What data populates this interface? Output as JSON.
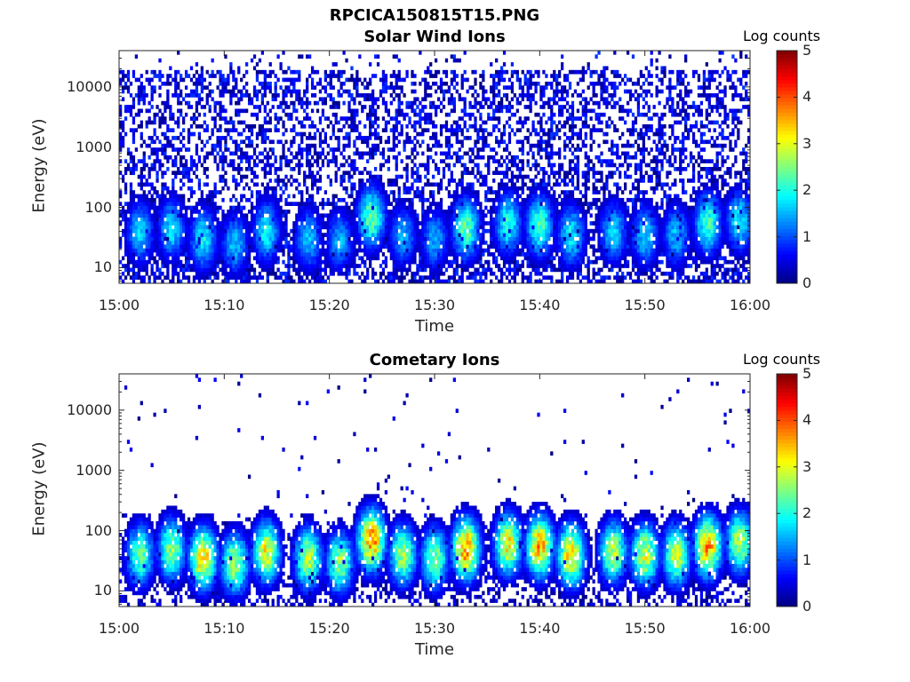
{
  "figure_title": "RPCICA150815T15.PNG",
  "chart_data": [
    {
      "type": "heatmap",
      "title": "Solar Wind Ions",
      "xlabel": "Time",
      "ylabel": "Energy (eV)",
      "x_range": [
        "15:00",
        "16:00"
      ],
      "x_ticks": [
        "15:00",
        "15:10",
        "15:20",
        "15:30",
        "15:40",
        "15:50",
        "16:00"
      ],
      "y_scale": "log",
      "y_range": [
        5.5,
        40000
      ],
      "y_ticks": [
        "10",
        "100",
        "1000",
        "10000"
      ],
      "colorbar": {
        "label": "Log counts",
        "range": [
          0,
          5
        ],
        "ticks": [
          "0",
          "1",
          "2",
          "3",
          "4",
          "5"
        ],
        "colormap": "jet"
      },
      "bursts": [
        {
          "t": "15:02",
          "e_peak": 40,
          "log_counts": 1.8
        },
        {
          "t": "15:05",
          "e_peak": 45,
          "log_counts": 1.9
        },
        {
          "t": "15:08",
          "e_peak": 30,
          "log_counts": 2.0
        },
        {
          "t": "15:11",
          "e_peak": 25,
          "log_counts": 1.7
        },
        {
          "t": "15:14",
          "e_peak": 40,
          "log_counts": 2.0
        },
        {
          "t": "15:18",
          "e_peak": 30,
          "log_counts": 1.7
        },
        {
          "t": "15:21",
          "e_peak": 28,
          "log_counts": 1.6
        },
        {
          "t": "15:24",
          "e_peak": 70,
          "log_counts": 2.6
        },
        {
          "t": "15:27",
          "e_peak": 35,
          "log_counts": 1.6
        },
        {
          "t": "15:30",
          "e_peak": 30,
          "log_counts": 1.6
        },
        {
          "t": "15:33",
          "e_peak": 45,
          "log_counts": 2.5
        },
        {
          "t": "15:37",
          "e_peak": 55,
          "log_counts": 2.2
        },
        {
          "t": "15:40",
          "e_peak": 50,
          "log_counts": 2.5
        },
        {
          "t": "15:43",
          "e_peak": 35,
          "log_counts": 2.0
        },
        {
          "t": "15:47",
          "e_peak": 40,
          "log_counts": 1.8
        },
        {
          "t": "15:50",
          "e_peak": 35,
          "log_counts": 1.8
        },
        {
          "t": "15:53",
          "e_peak": 35,
          "log_counts": 1.7
        },
        {
          "t": "15:56",
          "e_peak": 55,
          "log_counts": 2.4
        },
        {
          "t": "15:59",
          "e_peak": 60,
          "log_counts": 2.0
        }
      ],
      "background": "sparse counts (0–1 log counts) across 10–30000 eV"
    },
    {
      "type": "heatmap",
      "title": "Cometary Ions",
      "xlabel": "Time",
      "ylabel": "Energy (eV)",
      "x_range": [
        "15:00",
        "16:00"
      ],
      "x_ticks": [
        "15:00",
        "15:10",
        "15:20",
        "15:30",
        "15:40",
        "15:50",
        "16:00"
      ],
      "y_scale": "log",
      "y_range": [
        5.5,
        40000
      ],
      "y_ticks": [
        "10",
        "100",
        "1000",
        "10000"
      ],
      "colorbar": {
        "label": "Log counts",
        "range": [
          0,
          5
        ],
        "ticks": [
          "0",
          "1",
          "2",
          "3",
          "4",
          "5"
        ],
        "colormap": "jet"
      },
      "bursts": [
        {
          "t": "15:02",
          "e_peak": 40,
          "log_counts": 2.6
        },
        {
          "t": "15:05",
          "e_peak": 50,
          "log_counts": 2.8
        },
        {
          "t": "15:08",
          "e_peak": 35,
          "log_counts": 3.6
        },
        {
          "t": "15:11",
          "e_peak": 28,
          "log_counts": 3.0
        },
        {
          "t": "15:14",
          "e_peak": 45,
          "log_counts": 3.3
        },
        {
          "t": "15:18",
          "e_peak": 35,
          "log_counts": 3.0
        },
        {
          "t": "15:21",
          "e_peak": 30,
          "log_counts": 2.8
        },
        {
          "t": "15:24",
          "e_peak": 70,
          "log_counts": 4.0
        },
        {
          "t": "15:27",
          "e_peak": 40,
          "log_counts": 2.9
        },
        {
          "t": "15:30",
          "e_peak": 35,
          "log_counts": 2.8
        },
        {
          "t": "15:33",
          "e_peak": 50,
          "log_counts": 4.0
        },
        {
          "t": "15:37",
          "e_peak": 60,
          "log_counts": 3.4
        },
        {
          "t": "15:40",
          "e_peak": 55,
          "log_counts": 3.8
        },
        {
          "t": "15:43",
          "e_peak": 40,
          "log_counts": 3.6
        },
        {
          "t": "15:47",
          "e_peak": 45,
          "log_counts": 3.0
        },
        {
          "t": "15:50",
          "e_peak": 40,
          "log_counts": 3.2
        },
        {
          "t": "15:53",
          "e_peak": 40,
          "log_counts": 3.1
        },
        {
          "t": "15:56",
          "e_peak": 55,
          "log_counts": 3.9
        },
        {
          "t": "15:59",
          "e_peak": 65,
          "log_counts": 3.0
        }
      ],
      "background": "mostly empty above 1000 eV with isolated low-count pixels"
    }
  ]
}
